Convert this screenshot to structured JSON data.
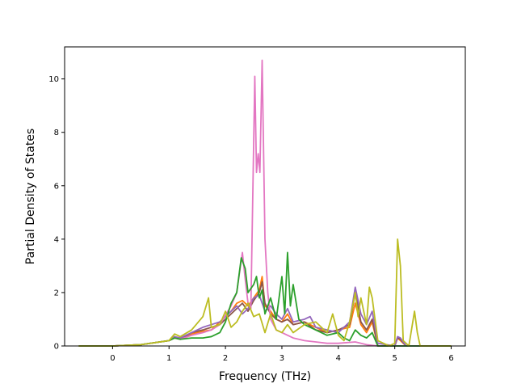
{
  "chart_data": {
    "type": "line",
    "title": "",
    "xlabel": "Frequency (THz)",
    "ylabel": "Partial Density of States",
    "xlim": [
      -0.85,
      6.25
    ],
    "ylim": [
      0,
      11.2
    ],
    "xticks": [
      {
        "value": 0,
        "label": "0"
      },
      {
        "value": 1,
        "label": "1"
      },
      {
        "value": 2,
        "label": "2"
      },
      {
        "value": 3,
        "label": "3"
      },
      {
        "value": 4,
        "label": "4"
      },
      {
        "value": 5,
        "label": "5"
      },
      {
        "value": 6,
        "label": "6"
      }
    ],
    "yticks": [
      {
        "value": 0,
        "label": "0"
      },
      {
        "value": 2,
        "label": "2"
      },
      {
        "value": 4,
        "label": "4"
      },
      {
        "value": 6,
        "label": "6"
      },
      {
        "value": 8,
        "label": "8"
      },
      {
        "value": 10,
        "label": "10"
      }
    ],
    "grid": false,
    "legend": "none",
    "series": [
      {
        "color": "#ff7f0e",
        "points": [
          [
            -0.6,
            0
          ],
          [
            0,
            0
          ],
          [
            0.5,
            0.05
          ],
          [
            1.0,
            0.2
          ],
          [
            1.1,
            0.3
          ],
          [
            1.2,
            0.25
          ],
          [
            1.4,
            0.45
          ],
          [
            1.6,
            0.55
          ],
          [
            1.75,
            0.6
          ],
          [
            1.9,
            0.9
          ],
          [
            2.1,
            1.3
          ],
          [
            2.2,
            1.6
          ],
          [
            2.3,
            1.7
          ],
          [
            2.4,
            1.5
          ],
          [
            2.5,
            1.8
          ],
          [
            2.6,
            2.1
          ],
          [
            2.65,
            2.6
          ],
          [
            2.7,
            1.5
          ],
          [
            2.8,
            1.3
          ],
          [
            2.9,
            1.0
          ],
          [
            3.0,
            0.9
          ],
          [
            3.1,
            1.2
          ],
          [
            3.2,
            0.8
          ],
          [
            3.4,
            0.9
          ],
          [
            3.6,
            0.7
          ],
          [
            3.8,
            0.5
          ],
          [
            4.0,
            0.6
          ],
          [
            4.2,
            0.7
          ],
          [
            4.3,
            1.6
          ],
          [
            4.4,
            0.8
          ],
          [
            4.5,
            0.5
          ],
          [
            4.6,
            0.9
          ],
          [
            4.7,
            0
          ],
          [
            5.0,
            0
          ],
          [
            5.05,
            0.3
          ],
          [
            5.1,
            0.2
          ],
          [
            5.2,
            0
          ],
          [
            6.0,
            0
          ]
        ]
      },
      {
        "color": "#8c564b",
        "points": [
          [
            -0.6,
            0
          ],
          [
            0,
            0
          ],
          [
            0.5,
            0.05
          ],
          [
            1.0,
            0.2
          ],
          [
            1.1,
            0.35
          ],
          [
            1.2,
            0.25
          ],
          [
            1.4,
            0.5
          ],
          [
            1.6,
            0.6
          ],
          [
            1.75,
            0.7
          ],
          [
            1.9,
            0.8
          ],
          [
            2.1,
            1.2
          ],
          [
            2.2,
            1.4
          ],
          [
            2.3,
            1.6
          ],
          [
            2.4,
            1.3
          ],
          [
            2.5,
            1.7
          ],
          [
            2.6,
            2.0
          ],
          [
            2.65,
            2.4
          ],
          [
            2.7,
            1.6
          ],
          [
            2.8,
            1.2
          ],
          [
            2.9,
            1.0
          ],
          [
            3.0,
            0.9
          ],
          [
            3.1,
            1.0
          ],
          [
            3.2,
            0.8
          ],
          [
            3.4,
            0.9
          ],
          [
            3.6,
            0.6
          ],
          [
            3.8,
            0.5
          ],
          [
            4.0,
            0.6
          ],
          [
            4.2,
            0.8
          ],
          [
            4.3,
            2.0
          ],
          [
            4.4,
            0.9
          ],
          [
            4.5,
            0.6
          ],
          [
            4.6,
            1.0
          ],
          [
            4.7,
            0
          ],
          [
            5.0,
            0
          ],
          [
            5.05,
            0.3
          ],
          [
            5.1,
            0.25
          ],
          [
            5.2,
            0
          ],
          [
            6.0,
            0
          ]
        ]
      },
      {
        "color": "#9467bd",
        "points": [
          [
            -0.6,
            0
          ],
          [
            0,
            0
          ],
          [
            0.5,
            0.05
          ],
          [
            1.0,
            0.2
          ],
          [
            1.1,
            0.35
          ],
          [
            1.2,
            0.3
          ],
          [
            1.4,
            0.5
          ],
          [
            1.6,
            0.7
          ],
          [
            1.75,
            0.8
          ],
          [
            1.9,
            0.9
          ],
          [
            2.0,
            1.1
          ],
          [
            2.1,
            1.3
          ],
          [
            2.2,
            1.5
          ],
          [
            2.3,
            1.2
          ],
          [
            2.4,
            1.4
          ],
          [
            2.5,
            1.8
          ],
          [
            2.6,
            1.9
          ],
          [
            2.7,
            1.3
          ],
          [
            2.8,
            1.5
          ],
          [
            2.9,
            1.2
          ],
          [
            3.0,
            1.0
          ],
          [
            3.1,
            1.4
          ],
          [
            3.2,
            0.9
          ],
          [
            3.4,
            1.0
          ],
          [
            3.5,
            1.1
          ],
          [
            3.6,
            0.7
          ],
          [
            3.8,
            0.6
          ],
          [
            4.0,
            0.5
          ],
          [
            4.2,
            0.9
          ],
          [
            4.3,
            2.2
          ],
          [
            4.4,
            1.2
          ],
          [
            4.5,
            0.8
          ],
          [
            4.6,
            1.3
          ],
          [
            4.7,
            0.1
          ],
          [
            5.0,
            0
          ],
          [
            5.05,
            0.35
          ],
          [
            5.1,
            0.3
          ],
          [
            5.2,
            0
          ],
          [
            6.0,
            0
          ]
        ]
      },
      {
        "color": "#e377c2",
        "points": [
          [
            -0.6,
            0
          ],
          [
            0,
            0
          ],
          [
            0.5,
            0.05
          ],
          [
            1.0,
            0.2
          ],
          [
            1.1,
            0.3
          ],
          [
            1.2,
            0.25
          ],
          [
            1.4,
            0.4
          ],
          [
            1.6,
            0.5
          ],
          [
            1.75,
            0.6
          ],
          [
            1.9,
            0.8
          ],
          [
            2.1,
            1.5
          ],
          [
            2.2,
            2.0
          ],
          [
            2.3,
            3.5
          ],
          [
            2.35,
            2.5
          ],
          [
            2.4,
            1.6
          ],
          [
            2.45,
            1.4
          ],
          [
            2.52,
            10.1
          ],
          [
            2.55,
            6.5
          ],
          [
            2.58,
            7.2
          ],
          [
            2.61,
            6.5
          ],
          [
            2.65,
            10.7
          ],
          [
            2.7,
            4.0
          ],
          [
            2.75,
            2.0
          ],
          [
            2.8,
            1.0
          ],
          [
            2.9,
            0.6
          ],
          [
            3.0,
            0.5
          ],
          [
            3.2,
            0.3
          ],
          [
            3.4,
            0.2
          ],
          [
            3.6,
            0.15
          ],
          [
            3.8,
            0.1
          ],
          [
            4.0,
            0.1
          ],
          [
            4.3,
            0.15
          ],
          [
            4.5,
            0.05
          ],
          [
            4.7,
            0
          ],
          [
            6.0,
            0
          ]
        ]
      },
      {
        "color": "#2ca02c",
        "points": [
          [
            -0.6,
            0
          ],
          [
            0,
            0
          ],
          [
            0.5,
            0.05
          ],
          [
            1.0,
            0.2
          ],
          [
            1.1,
            0.3
          ],
          [
            1.2,
            0.25
          ],
          [
            1.4,
            0.3
          ],
          [
            1.6,
            0.3
          ],
          [
            1.75,
            0.35
          ],
          [
            1.9,
            0.5
          ],
          [
            2.0,
            0.9
          ],
          [
            2.1,
            1.6
          ],
          [
            2.2,
            2.0
          ],
          [
            2.28,
            3.3
          ],
          [
            2.35,
            2.9
          ],
          [
            2.4,
            2.0
          ],
          [
            2.5,
            2.3
          ],
          [
            2.55,
            2.6
          ],
          [
            2.6,
            1.8
          ],
          [
            2.65,
            2.1
          ],
          [
            2.7,
            1.2
          ],
          [
            2.8,
            1.8
          ],
          [
            2.9,
            1.0
          ],
          [
            3.0,
            2.6
          ],
          [
            3.05,
            1.2
          ],
          [
            3.1,
            3.5
          ],
          [
            3.15,
            1.5
          ],
          [
            3.2,
            2.3
          ],
          [
            3.3,
            1.0
          ],
          [
            3.4,
            0.8
          ],
          [
            3.6,
            0.6
          ],
          [
            3.8,
            0.4
          ],
          [
            4.0,
            0.5
          ],
          [
            4.1,
            0.3
          ],
          [
            4.2,
            0.2
          ],
          [
            4.3,
            0.6
          ],
          [
            4.4,
            0.4
          ],
          [
            4.5,
            0.3
          ],
          [
            4.6,
            0.5
          ],
          [
            4.7,
            0
          ],
          [
            6.0,
            0
          ]
        ]
      },
      {
        "color": "#bcbd22",
        "points": [
          [
            -0.6,
            0
          ],
          [
            0,
            0
          ],
          [
            0.5,
            0.05
          ],
          [
            1.0,
            0.2
          ],
          [
            1.1,
            0.45
          ],
          [
            1.2,
            0.35
          ],
          [
            1.4,
            0.6
          ],
          [
            1.6,
            1.1
          ],
          [
            1.7,
            1.8
          ],
          [
            1.75,
            0.7
          ],
          [
            1.9,
            0.8
          ],
          [
            2.0,
            1.3
          ],
          [
            2.1,
            0.7
          ],
          [
            2.2,
            0.9
          ],
          [
            2.3,
            1.3
          ],
          [
            2.4,
            1.6
          ],
          [
            2.5,
            1.1
          ],
          [
            2.6,
            1.2
          ],
          [
            2.7,
            0.5
          ],
          [
            2.8,
            1.2
          ],
          [
            2.9,
            0.6
          ],
          [
            3.0,
            0.5
          ],
          [
            3.1,
            0.8
          ],
          [
            3.2,
            0.5
          ],
          [
            3.4,
            0.8
          ],
          [
            3.6,
            0.9
          ],
          [
            3.8,
            0.5
          ],
          [
            3.9,
            1.2
          ],
          [
            4.0,
            0.4
          ],
          [
            4.1,
            0.2
          ],
          [
            4.2,
            0.9
          ],
          [
            4.3,
            2.0
          ],
          [
            4.35,
            1.1
          ],
          [
            4.4,
            1.8
          ],
          [
            4.5,
            0.8
          ],
          [
            4.55,
            2.2
          ],
          [
            4.6,
            1.8
          ],
          [
            4.7,
            0.2
          ],
          [
            4.9,
            0
          ],
          [
            5.0,
            0.1
          ],
          [
            5.05,
            4.0
          ],
          [
            5.1,
            3.0
          ],
          [
            5.15,
            0.2
          ],
          [
            5.25,
            0
          ],
          [
            5.35,
            1.3
          ],
          [
            5.4,
            0.5
          ],
          [
            5.45,
            0
          ],
          [
            6.0,
            0
          ]
        ]
      }
    ]
  }
}
